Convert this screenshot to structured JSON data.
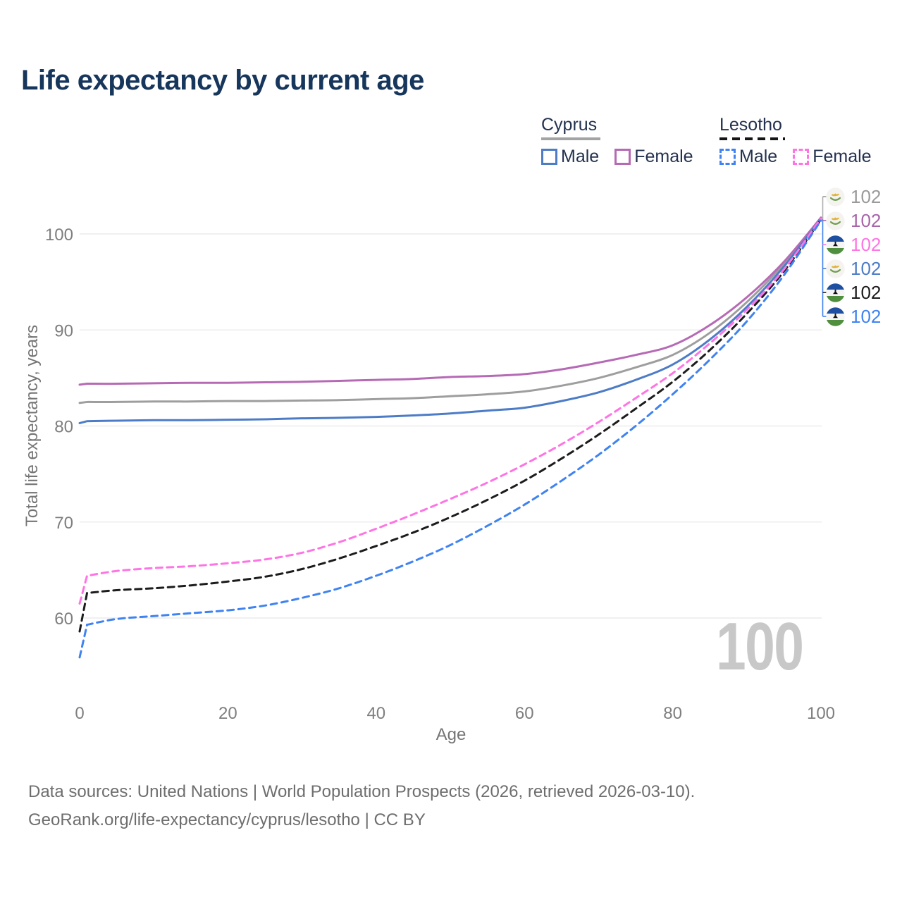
{
  "title": "Life expectancy by current age",
  "hover_age": "100",
  "legend": {
    "groups": [
      {
        "name": "Cyprus",
        "line_style": "solid",
        "underline_color": "#a3a3a3",
        "items": [
          {
            "label": "Male",
            "color": "#4d7cc7"
          },
          {
            "label": "Female",
            "color": "#b66ab5"
          }
        ]
      },
      {
        "name": "Lesotho",
        "line_style": "dashed",
        "underline_color": "#151515",
        "items": [
          {
            "label": "Male",
            "color": "#3f83f2"
          },
          {
            "label": "Female",
            "color": "#ff74e4"
          }
        ]
      }
    ]
  },
  "axes": {
    "x_title": "Age",
    "y_title": "Total life expectancy, years",
    "x_ticks": [
      0,
      20,
      40,
      60,
      80,
      100
    ],
    "y_ticks": [
      60,
      70,
      80,
      90,
      100
    ]
  },
  "chart_data": {
    "type": "line",
    "title": "Life expectancy by current age",
    "xlabel": "Age",
    "ylabel": "Total life expectancy, years",
    "xlim": [
      0,
      100
    ],
    "ylim": [
      55,
      105
    ],
    "grid": "horizontal",
    "legend_position": "top-right",
    "ages": [
      0,
      1,
      5,
      10,
      15,
      20,
      25,
      30,
      35,
      40,
      45,
      50,
      55,
      60,
      65,
      70,
      75,
      80,
      85,
      90,
      95,
      100
    ],
    "series": [
      {
        "name": "Cyprus",
        "country": "Cyprus",
        "role": "combined",
        "style": "solid",
        "color": "#9e9e9e",
        "values": [
          82.4,
          82.5,
          82.5,
          82.55,
          82.55,
          82.6,
          82.6,
          82.65,
          82.7,
          82.8,
          82.9,
          83.1,
          83.3,
          83.6,
          84.2,
          85.0,
          86.1,
          87.4,
          89.7,
          92.9,
          96.9,
          101.7
        ]
      },
      {
        "name": "Cyprus Female",
        "country": "Cyprus",
        "role": "female",
        "style": "solid",
        "color": "#b66ab5",
        "values": [
          84.3,
          84.4,
          84.4,
          84.45,
          84.5,
          84.5,
          84.55,
          84.6,
          84.7,
          84.8,
          84.9,
          85.1,
          85.2,
          85.4,
          85.9,
          86.6,
          87.4,
          88.4,
          90.5,
          93.4,
          97.1,
          101.7
        ]
      },
      {
        "name": "Cyprus Male",
        "country": "Cyprus",
        "role": "male",
        "style": "solid",
        "color": "#4d7cc7",
        "values": [
          80.3,
          80.5,
          80.55,
          80.6,
          80.6,
          80.65,
          80.7,
          80.8,
          80.85,
          80.95,
          81.1,
          81.3,
          81.6,
          81.9,
          82.6,
          83.5,
          84.8,
          86.4,
          89.0,
          92.4,
          96.6,
          101.6
        ]
      },
      {
        "name": "Lesotho",
        "country": "Lesotho",
        "role": "combined",
        "style": "dashed",
        "color": "#1c1c1c",
        "values": [
          58.6,
          62.6,
          62.9,
          63.1,
          63.4,
          63.8,
          64.3,
          65.1,
          66.2,
          67.5,
          68.9,
          70.5,
          72.3,
          74.3,
          76.6,
          79.1,
          81.8,
          84.6,
          87.9,
          91.7,
          96.1,
          101.5
        ]
      },
      {
        "name": "Lesotho Female",
        "country": "Lesotho",
        "role": "female",
        "style": "dashed",
        "color": "#ff74e4",
        "values": [
          61.5,
          64.4,
          64.9,
          65.2,
          65.4,
          65.7,
          66.1,
          66.8,
          67.9,
          69.3,
          70.8,
          72.4,
          74.1,
          76.0,
          78.1,
          80.4,
          82.9,
          85.5,
          88.6,
          92.1,
          96.3,
          101.6
        ]
      },
      {
        "name": "Lesotho Male",
        "country": "Lesotho",
        "role": "male",
        "style": "dashed",
        "color": "#3f83f2",
        "values": [
          55.9,
          59.3,
          59.9,
          60.2,
          60.5,
          60.8,
          61.3,
          62.1,
          63.1,
          64.4,
          65.9,
          67.6,
          69.6,
          71.8,
          74.3,
          77.0,
          80.0,
          83.3,
          86.9,
          90.9,
          95.7,
          101.4
        ]
      }
    ]
  },
  "end_labels": [
    {
      "flag": "cyprus",
      "series": "Cyprus",
      "value": "102",
      "color": "#9a9a9a"
    },
    {
      "flag": "cyprus",
      "series": "Cyprus Female",
      "value": "102",
      "color": "#a965a9"
    },
    {
      "flag": "lesotho",
      "series": "Lesotho Female",
      "value": "102",
      "color": "#ff74e4"
    },
    {
      "flag": "cyprus",
      "series": "Cyprus Male",
      "value": "102",
      "color": "#4d7cc7"
    },
    {
      "flag": "lesotho",
      "series": "Lesotho",
      "value": "102",
      "color": "#1c1c1c"
    },
    {
      "flag": "lesotho",
      "series": "Lesotho Male",
      "value": "102",
      "color": "#3f83f2"
    }
  ],
  "footer": {
    "line1": "Data sources: United Nations | World Population Prospects (2026, retrieved 2026-03-10).",
    "line2": "GeoRank.org/life-expectancy/cyprus/lesotho | CC BY"
  }
}
